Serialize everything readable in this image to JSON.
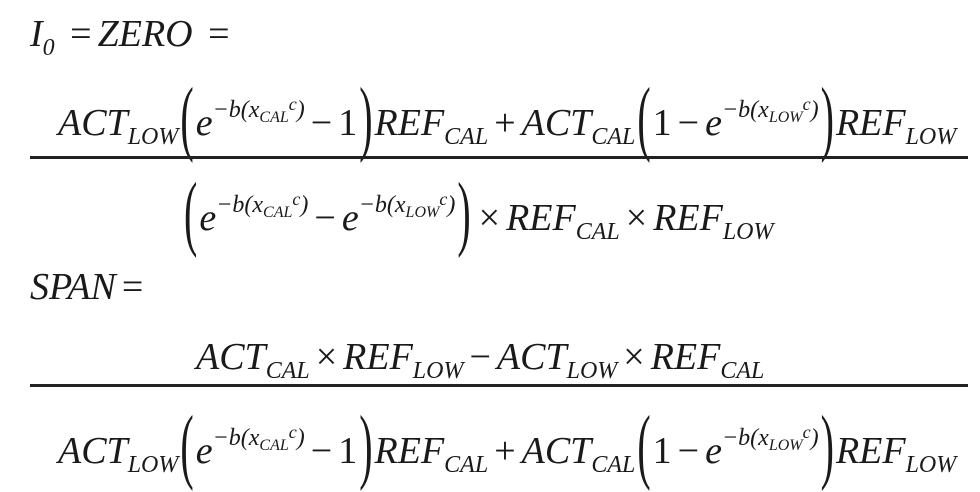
{
  "zero_label": {
    "i": "I",
    "i_sub": "0",
    "eq": "=",
    "zero": "ZERO",
    "eq2": "="
  },
  "span_label": {
    "span": "SPAN",
    "eq": "="
  },
  "sym": {
    "act": "ACT",
    "ref": "REF",
    "low": "LOW",
    "cal": "CAL",
    "e": "e",
    "neg_b": "−b(",
    "x": "x",
    "c": "c",
    "close": ")",
    "minus": "−",
    "plus": "+",
    "times": "×",
    "one": "1",
    "lparen": "(",
    "rparen": ")"
  }
}
